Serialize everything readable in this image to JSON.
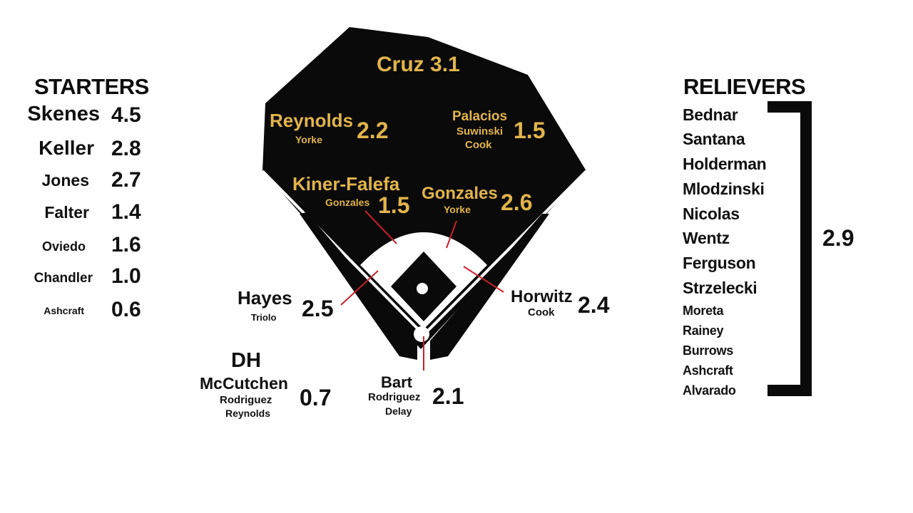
{
  "starters": {
    "heading": "STARTERS",
    "rows": [
      {
        "name": "Skenes",
        "war": "4.5"
      },
      {
        "name": "Keller",
        "war": "2.8"
      },
      {
        "name": "Jones",
        "war": "2.7"
      },
      {
        "name": "Falter",
        "war": "1.4"
      },
      {
        "name": "Oviedo",
        "war": "1.6"
      },
      {
        "name": "Chandler",
        "war": "1.0"
      },
      {
        "name": "Ashcraft",
        "war": "0.6"
      }
    ]
  },
  "relievers": {
    "heading": "RELIEVERS",
    "names": [
      "Bednar",
      "Santana",
      "Holderman",
      "Mlodzinski",
      "Nicolas",
      "Wentz",
      "Ferguson",
      "Strzelecki",
      "Moreta",
      "Rainey",
      "Burrows",
      "Ashcraft",
      "Alvarado"
    ],
    "total": "2.9"
  },
  "positions": {
    "cf": {
      "name": "Cruz",
      "war": "3.1"
    },
    "lf": {
      "name": "Reynolds",
      "backups": [
        "Yorke"
      ],
      "war": "2.2"
    },
    "rf": {
      "names": [
        "Palacios",
        "Suwinski",
        "Cook"
      ],
      "war": "1.5"
    },
    "ss": {
      "name": "Kiner-Falefa",
      "backups": [
        "Gonzales"
      ],
      "war": "1.5"
    },
    "second_base": {
      "name": "Gonzales",
      "backups": [
        "Yorke"
      ],
      "war": "2.6"
    },
    "third_base": {
      "name": "Hayes",
      "backups": [
        "Triolo"
      ],
      "war": "2.5"
    },
    "first_base": {
      "name": "Horwitz",
      "backups": [
        "Cook"
      ],
      "war": "2.4"
    },
    "catcher": {
      "name": "Bart",
      "backups": [
        "Rodriguez",
        "Delay"
      ],
      "war": "2.1"
    },
    "dh": {
      "label": "DH",
      "name": "McCutchen",
      "backups": [
        "Rodriguez",
        "Reynolds"
      ],
      "war": "0.7"
    }
  },
  "colors": {
    "field": "#0a0a0a",
    "infield_dirt": "#ffffff",
    "label_gold": "#e2b44b",
    "pointer_line": "#c8202c"
  }
}
